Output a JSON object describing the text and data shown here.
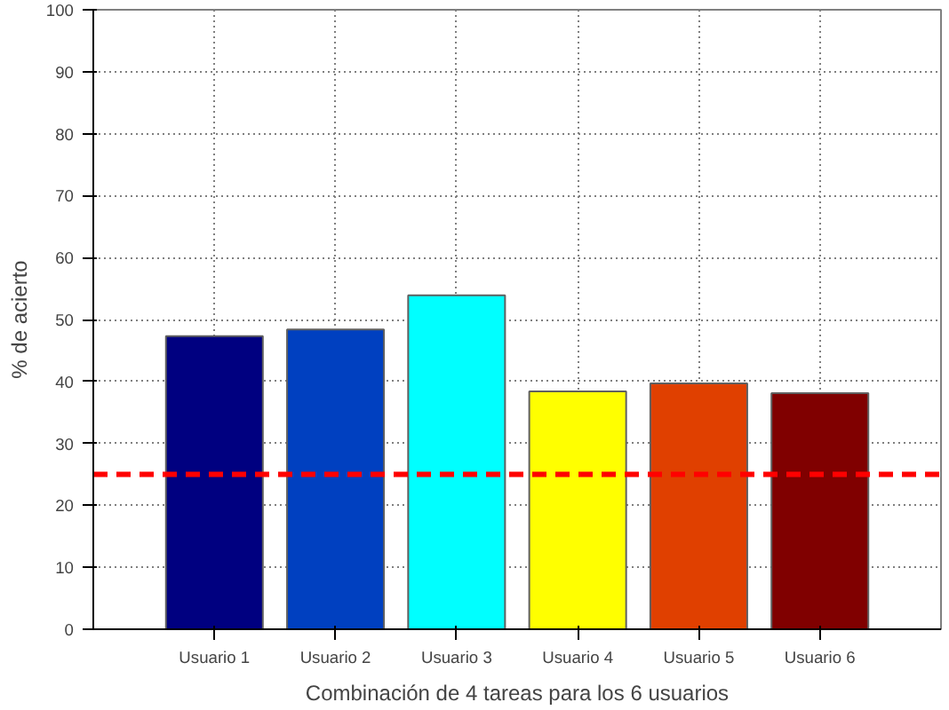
{
  "chart_data": {
    "type": "bar",
    "xlabel": "Combinación de 4 tareas para los 6 usuarios",
    "ylabel": "% de acierto",
    "categories": [
      "Usuario 1",
      "Usuario 2",
      "Usuario 3",
      "Usuario 4",
      "Usuario 5",
      "Usuario 6"
    ],
    "values": [
      47.3,
      48.4,
      53.9,
      38.4,
      39.7,
      38.1
    ],
    "colors": [
      "#000080",
      "#0040c0",
      "#00ffff",
      "#ffff00",
      "#e04000",
      "#800000"
    ],
    "ylim": [
      0,
      100
    ],
    "yticks": [
      0,
      10,
      20,
      30,
      40,
      50,
      60,
      70,
      80,
      90,
      100
    ],
    "grid": true,
    "ref_lines": [
      {
        "axis": "y",
        "value": 25,
        "color": "#ff0000",
        "line_style": "dashed"
      }
    ]
  }
}
